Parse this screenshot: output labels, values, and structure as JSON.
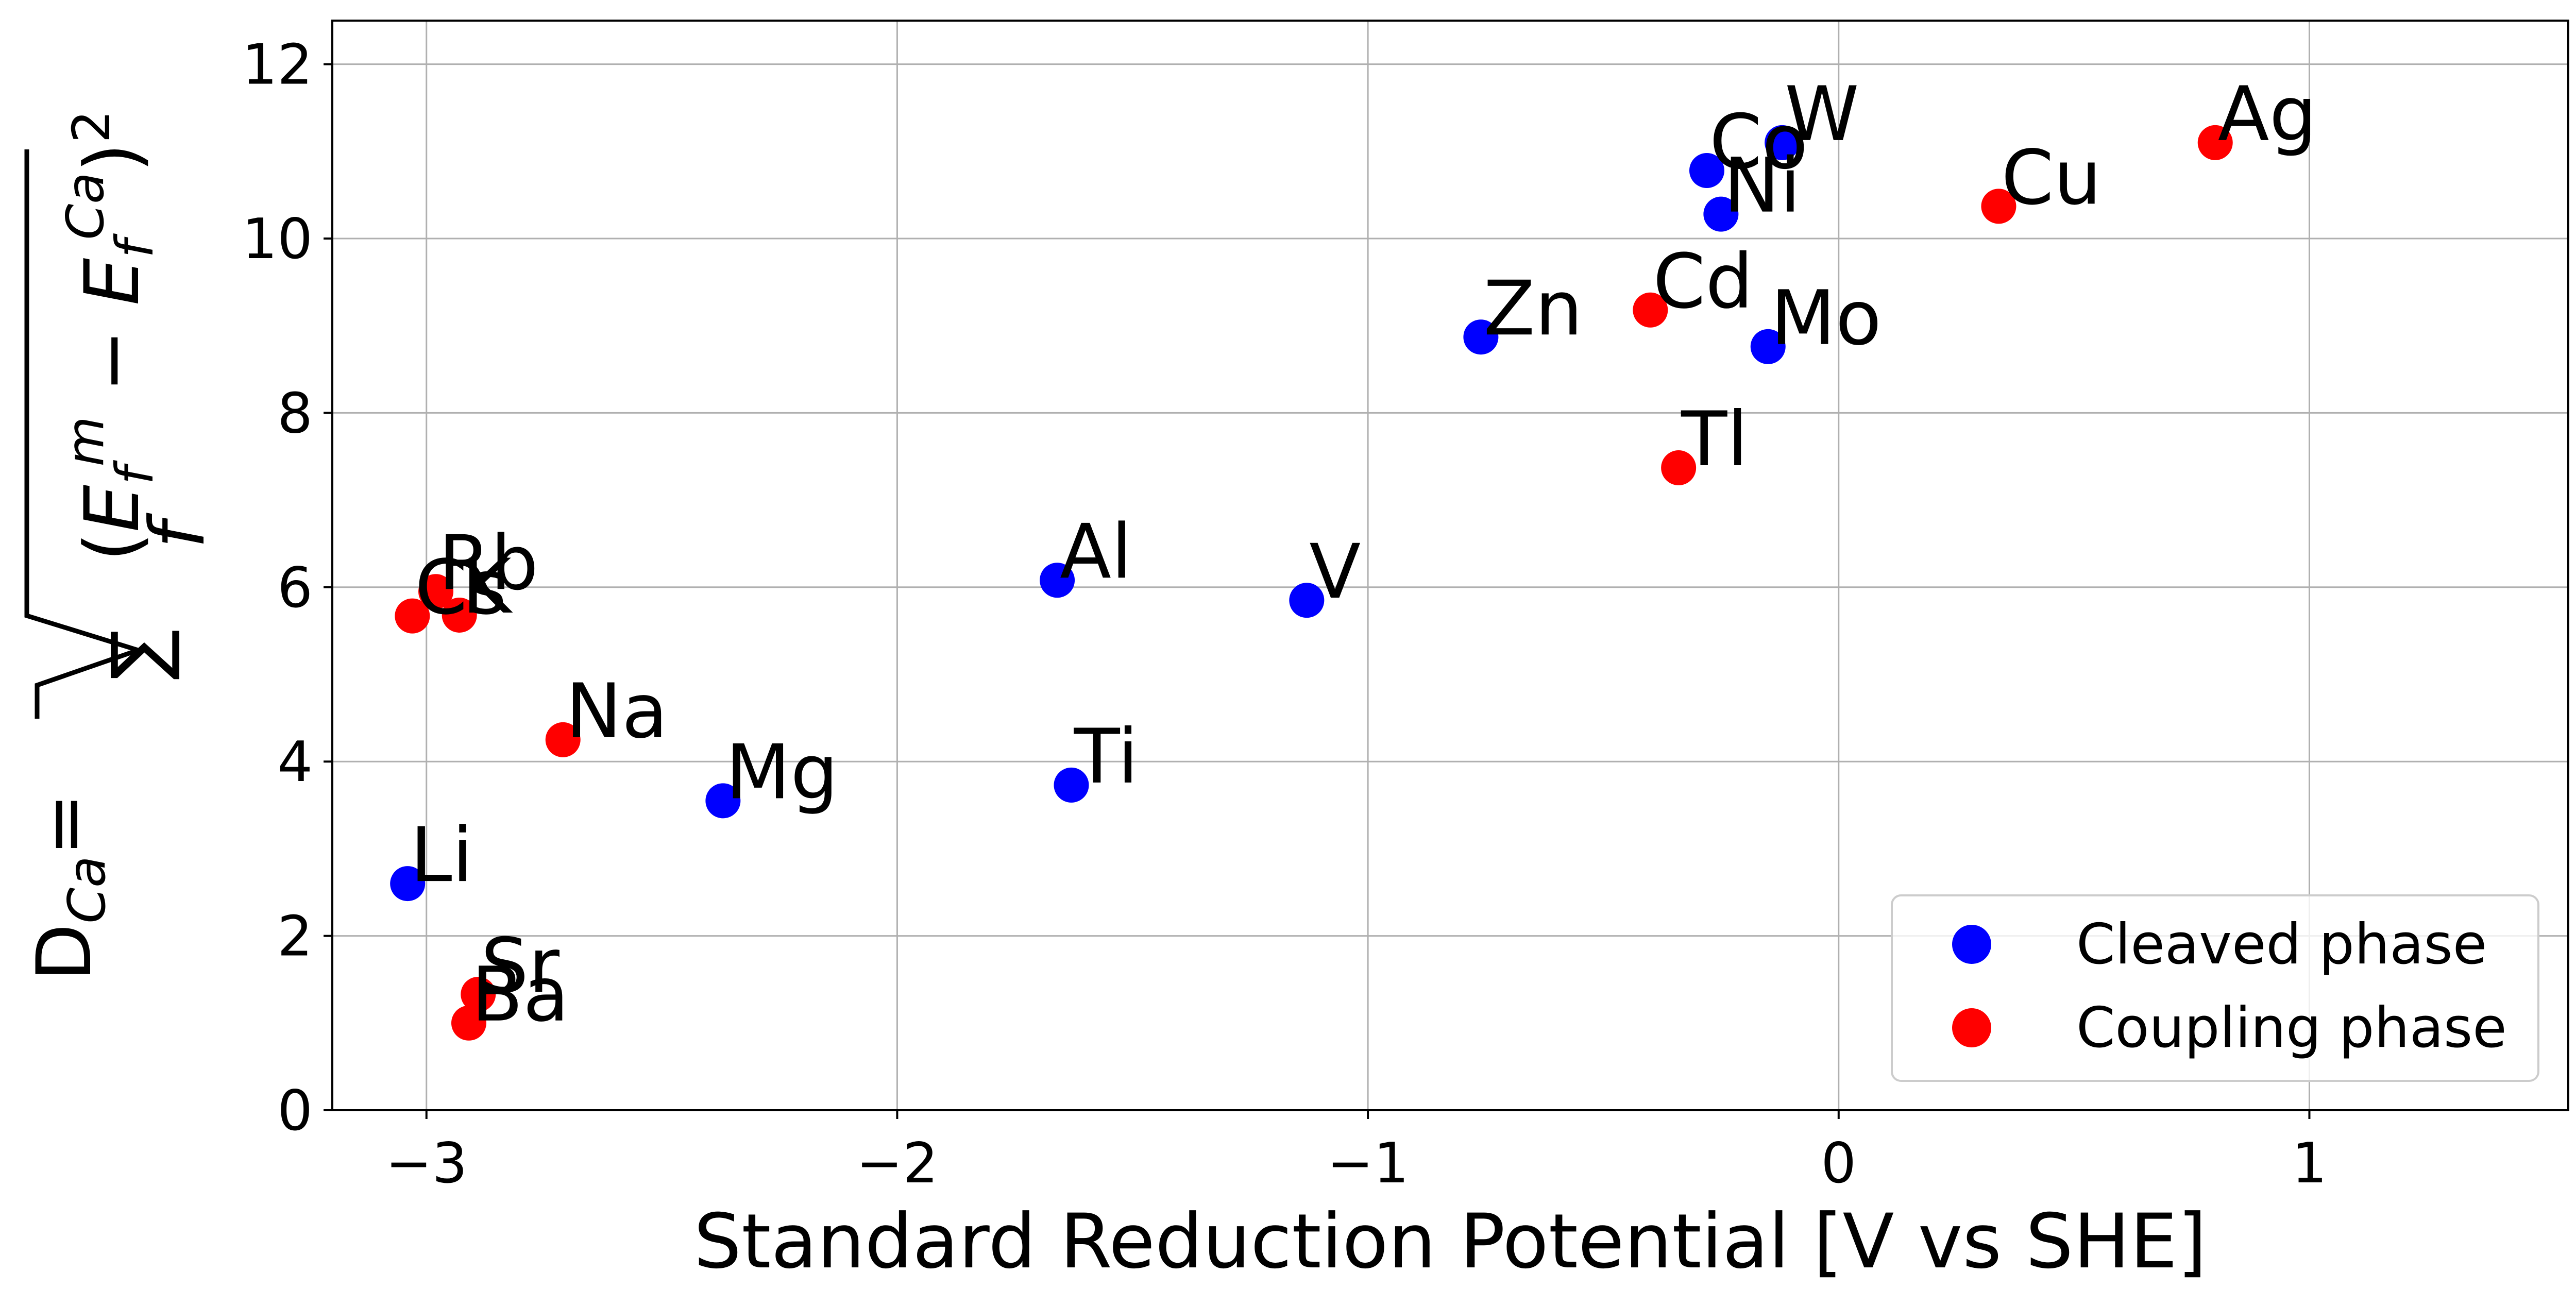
{
  "chart_data": {
    "type": "scatter",
    "xlabel": "Standard Reduction Potential [V vs SHE]",
    "ylabel_prefix": "D",
    "ylabel_sub": "Ca",
    "ylabel_equals": "=",
    "ylabel_expr": "√Σf (Efm − EfCa)²",
    "xlim": [
      -3.2,
      1.55
    ],
    "ylim": [
      0,
      12.5
    ],
    "xticks": [
      -3,
      -2,
      -1,
      0,
      1
    ],
    "xtick_labels": [
      "−3",
      "−2",
      "−1",
      "0",
      "1"
    ],
    "yticks": [
      0,
      2,
      4,
      6,
      8,
      10,
      12
    ],
    "ytick_labels": [
      "0",
      "2",
      "4",
      "6",
      "8",
      "10",
      "12"
    ],
    "grid": true,
    "legend_position": "bottom-right",
    "series": [
      {
        "name": "Cleaved phase",
        "color": "#0000ff",
        "points": [
          {
            "label": "Li",
            "x": -3.04,
            "y": 2.6
          },
          {
            "label": "Mg",
            "x": -2.37,
            "y": 3.55
          },
          {
            "label": "Al",
            "x": -1.66,
            "y": 6.08
          },
          {
            "label": "Ti",
            "x": -1.63,
            "y": 3.73
          },
          {
            "label": "V",
            "x": -1.13,
            "y": 5.85
          },
          {
            "label": "Zn",
            "x": -0.76,
            "y": 8.87
          },
          {
            "label": "Co",
            "x": -0.28,
            "y": 10.78
          },
          {
            "label": "Ni",
            "x": -0.25,
            "y": 10.28
          },
          {
            "label": "Mo",
            "x": -0.15,
            "y": 8.76
          },
          {
            "label": "W",
            "x": -0.12,
            "y": 11.1
          }
        ]
      },
      {
        "name": "Coupling phase",
        "color": "#ff0000",
        "points": [
          {
            "label": "Cs",
            "x": -3.03,
            "y": 5.67
          },
          {
            "label": "Rb",
            "x": -2.98,
            "y": 5.95
          },
          {
            "label": "K",
            "x": -2.93,
            "y": 5.68
          },
          {
            "label": "Ba",
            "x": -2.91,
            "y": 1.0
          },
          {
            "label": "Sr",
            "x": -2.89,
            "y": 1.33
          },
          {
            "label": "Na",
            "x": -2.71,
            "y": 4.25
          },
          {
            "label": "Cd",
            "x": -0.4,
            "y": 9.18
          },
          {
            "label": "Tl",
            "x": -0.34,
            "y": 7.37
          },
          {
            "label": "Cu",
            "x": 0.34,
            "y": 10.37
          },
          {
            "label": "Ag",
            "x": 0.8,
            "y": 11.1
          }
        ]
      }
    ]
  }
}
